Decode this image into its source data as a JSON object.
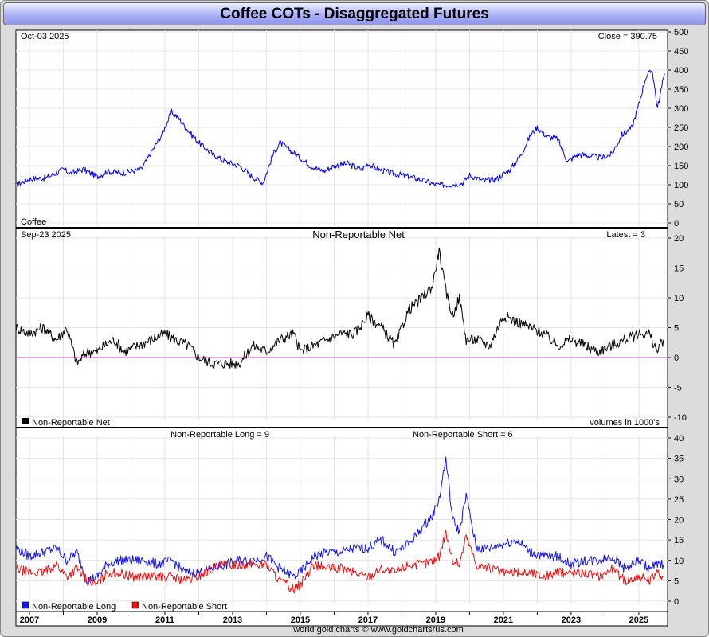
{
  "title": "Coffee COTs - Disaggregated Futures",
  "footer": "world gold charts © www.goldchartsrus.com",
  "colors": {
    "price": "#0000ee",
    "net": "#000000",
    "long": "#1515ee",
    "short": "#ee1010",
    "zero_line": "#cc44cc",
    "title_bg": "#aab0f5"
  },
  "chart_data": [
    {
      "type": "line",
      "panel": "price",
      "date_label": "Oct-03  2025",
      "latest_label": "Close = 390.75",
      "series_label": "Coffee",
      "y_ticks": [
        0,
        50,
        100,
        150,
        200,
        250,
        300,
        350,
        400,
        450,
        500
      ],
      "ylim": [
        0,
        500
      ],
      "x": [
        2006.6,
        2007.0,
        2007.5,
        2008.0,
        2008.2,
        2008.6,
        2009.0,
        2009.3,
        2009.7,
        2010.0,
        2010.3,
        2010.7,
        2010.9,
        2011.2,
        2011.4,
        2011.7,
        2012.0,
        2012.4,
        2012.8,
        2013.2,
        2013.6,
        2013.9,
        2014.2,
        2014.4,
        2014.7,
        2015.0,
        2015.3,
        2015.7,
        2016.0,
        2016.4,
        2016.8,
        2017.0,
        2017.3,
        2017.7,
        2018.0,
        2018.5,
        2019.0,
        2019.4,
        2019.8,
        2020.0,
        2020.4,
        2020.8,
        2021.2,
        2021.5,
        2021.8,
        2022.0,
        2022.3,
        2022.6,
        2022.9,
        2023.2,
        2023.6,
        2023.9,
        2024.2,
        2024.5,
        2024.8,
        2025.0,
        2025.2,
        2025.4,
        2025.55,
        2025.76
      ],
      "values": [
        100,
        115,
        118,
        140,
        130,
        140,
        120,
        135,
        130,
        135,
        140,
        200,
        230,
        290,
        275,
        240,
        210,
        180,
        160,
        150,
        120,
        105,
        180,
        210,
        190,
        170,
        150,
        135,
        150,
        155,
        140,
        155,
        140,
        130,
        125,
        115,
        100,
        100,
        105,
        125,
        110,
        115,
        140,
        175,
        230,
        250,
        225,
        220,
        160,
        180,
        175,
        170,
        180,
        230,
        250,
        310,
        380,
        400,
        300,
        390.75
      ]
    },
    {
      "type": "line",
      "panel": "net",
      "title": "Non-Reportable Net",
      "date_label": "Sep-23  2025",
      "latest_label": "Latest = 3",
      "legend": "Non-Reportable Net",
      "note": "volumes in 1000's",
      "y_ticks": [
        -10,
        -5,
        0,
        5,
        10,
        15,
        20
      ],
      "ylim": [
        -10,
        20
      ],
      "x": [
        2006.6,
        2007.0,
        2007.4,
        2007.8,
        2008.1,
        2008.4,
        2008.7,
        2009.0,
        2009.2,
        2009.5,
        2009.8,
        2010.2,
        2010.6,
        2011.0,
        2011.3,
        2011.7,
        2012.0,
        2012.4,
        2012.8,
        2013.2,
        2013.6,
        2014.0,
        2014.4,
        2014.8,
        2015.0,
        2015.4,
        2015.8,
        2016.2,
        2016.6,
        2017.0,
        2017.4,
        2017.8,
        2018.2,
        2018.6,
        2018.9,
        2019.1,
        2019.3,
        2019.5,
        2019.7,
        2019.9,
        2020.2,
        2020.6,
        2021.0,
        2021.4,
        2021.8,
        2022.2,
        2022.6,
        2023.0,
        2023.4,
        2023.8,
        2024.2,
        2024.6,
        2025.0,
        2025.3,
        2025.55,
        2025.73
      ],
      "values": [
        5,
        4,
        5,
        3,
        5,
        -1,
        1,
        1,
        2,
        3,
        1,
        2,
        3,
        4,
        3,
        2,
        0,
        -1,
        -1,
        -1,
        2,
        1,
        3,
        4,
        1,
        2,
        3,
        4,
        4,
        7,
        5,
        2,
        8,
        10,
        12,
        18,
        11,
        7,
        10,
        3,
        3,
        2,
        7,
        6,
        5,
        4,
        2,
        3,
        2,
        1,
        2,
        3,
        4,
        4,
        1,
        3
      ]
    },
    {
      "type": "line",
      "panel": "long_short",
      "title_long": "Non-Reportable Long = 9",
      "title_short": "Non-Reportable Short = 6",
      "y_ticks": [
        0,
        5,
        10,
        15,
        20,
        25,
        30,
        35,
        40
      ],
      "ylim": [
        0,
        40
      ],
      "x_ticks": [
        "2007",
        "2009",
        "2011",
        "2013",
        "2015",
        "2017",
        "2019",
        "2021",
        "2023",
        "2025"
      ],
      "x": [
        2006.6,
        2007.0,
        2007.4,
        2007.8,
        2008.1,
        2008.4,
        2008.7,
        2009.0,
        2009.3,
        2009.6,
        2010.0,
        2010.4,
        2010.8,
        2011.2,
        2011.6,
        2012.0,
        2012.4,
        2012.8,
        2013.2,
        2013.6,
        2014.0,
        2014.4,
        2014.8,
        2015.0,
        2015.4,
        2015.8,
        2016.2,
        2016.6,
        2017.0,
        2017.4,
        2017.8,
        2018.2,
        2018.6,
        2018.9,
        2019.1,
        2019.3,
        2019.5,
        2019.7,
        2019.9,
        2020.2,
        2020.6,
        2021.0,
        2021.4,
        2021.8,
        2022.2,
        2022.6,
        2023.0,
        2023.4,
        2023.8,
        2024.2,
        2024.6,
        2025.0,
        2025.3,
        2025.55,
        2025.73
      ],
      "series": [
        {
          "name": "Non-Reportable Long",
          "values": [
            13,
            11,
            12,
            13,
            10,
            12,
            5,
            6,
            9,
            10,
            10,
            10,
            9,
            10,
            7,
            7,
            8,
            9,
            10,
            10,
            11,
            8,
            6,
            7,
            11,
            12,
            12,
            13,
            13,
            15,
            12,
            14,
            18,
            21,
            25,
            35,
            20,
            17,
            26,
            13,
            13,
            14,
            15,
            12,
            11,
            11,
            9,
            10,
            10,
            11,
            8,
            10,
            8,
            9,
            9
          ]
        },
        {
          "name": "Non-Reportable Short",
          "values": [
            8,
            7,
            7,
            9,
            6,
            8,
            5,
            4,
            7,
            7,
            6,
            6,
            6,
            6,
            5,
            6,
            8,
            9,
            9,
            9,
            9,
            5,
            3,
            4,
            9,
            8,
            8,
            7,
            6,
            8,
            7,
            9,
            9,
            10,
            11,
            17,
            10,
            9,
            16,
            9,
            8,
            7,
            7,
            7,
            6,
            7,
            7,
            7,
            6,
            8,
            5,
            6,
            5,
            7,
            6
          ]
        }
      ]
    }
  ]
}
